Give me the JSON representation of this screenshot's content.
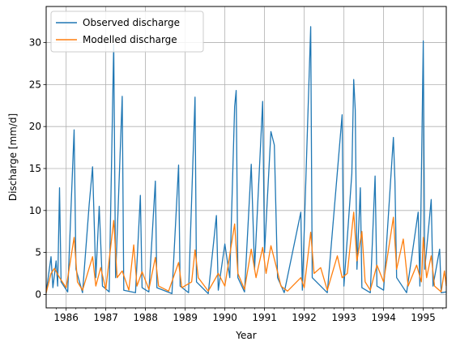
{
  "chart_data": {
    "type": "line",
    "title": "",
    "xlabel": "Year",
    "ylabel": "Discharge [mm/d]",
    "xlim": [
      "1985-07-01",
      "1995-08-01"
    ],
    "ylim": [
      -1.6,
      34.3
    ],
    "x_ticks": [
      "1986",
      "1987",
      "1988",
      "1989",
      "1990",
      "1991",
      "1992",
      "1993",
      "1994",
      "1995"
    ],
    "y_ticks": [
      0,
      5,
      10,
      15,
      20,
      25,
      30
    ],
    "grid": true,
    "legend": "top-left",
    "colors": {
      "observed": "#1f77b4",
      "modelled": "#ff7f0e",
      "grid": "#b0b0b0"
    },
    "series": [
      {
        "name": "Observed discharge",
        "color": "#1f77b4",
        "points": [
          [
            "1985-07-01",
            0.2
          ],
          [
            "1985-08-15",
            4.5
          ],
          [
            "1985-09-01",
            0.8
          ],
          [
            "1985-10-01",
            4.0
          ],
          [
            "1985-10-15",
            1.0
          ],
          [
            "1985-11-01",
            12.7
          ],
          [
            "1985-11-15",
            1.5
          ],
          [
            "1986-01-15",
            0.3
          ],
          [
            "1986-03-15",
            19.6
          ],
          [
            "1986-04-01",
            3.0
          ],
          [
            "1986-06-01",
            0.2
          ],
          [
            "1986-08-01",
            10.7
          ],
          [
            "1986-09-01",
            15.2
          ],
          [
            "1986-10-01",
            2.0
          ],
          [
            "1986-11-01",
            10.5
          ],
          [
            "1986-12-01",
            1.0
          ],
          [
            "1987-02-01",
            0.3
          ],
          [
            "1987-03-15",
            29.8
          ],
          [
            "1987-04-01",
            2.0
          ],
          [
            "1987-06-01",
            23.6
          ],
          [
            "1987-06-15",
            0.5
          ],
          [
            "1987-10-01",
            0.2
          ],
          [
            "1987-11-15",
            11.8
          ],
          [
            "1987-12-01",
            0.8
          ],
          [
            "1988-02-01",
            0.3
          ],
          [
            "1988-04-01",
            13.5
          ],
          [
            "1988-04-15",
            0.8
          ],
          [
            "1988-09-01",
            0.1
          ],
          [
            "1988-11-01",
            15.4
          ],
          [
            "1988-11-15",
            1.0
          ],
          [
            "1989-02-01",
            0.2
          ],
          [
            "1989-04-01",
            23.5
          ],
          [
            "1989-04-15",
            1.5
          ],
          [
            "1989-08-01",
            0.1
          ],
          [
            "1989-10-15",
            9.4
          ],
          [
            "1989-11-01",
            0.5
          ],
          [
            "1990-01-01",
            6.0
          ],
          [
            "1990-02-15",
            2.0
          ],
          [
            "1990-04-01",
            22.4
          ],
          [
            "1990-04-15",
            24.3
          ],
          [
            "1990-05-01",
            2.0
          ],
          [
            "1990-07-01",
            0.3
          ],
          [
            "1990-09-01",
            15.5
          ],
          [
            "1990-10-01",
            3.0
          ],
          [
            "1990-12-15",
            23.0
          ],
          [
            "1991-01-01",
            5.0
          ],
          [
            "1991-03-01",
            19.4
          ],
          [
            "1991-04-01",
            17.8
          ],
          [
            "1991-05-01",
            2.0
          ],
          [
            "1991-07-01",
            0.2
          ],
          [
            "1991-12-01",
            9.8
          ],
          [
            "1991-12-15",
            0.5
          ],
          [
            "1992-03-01",
            31.9
          ],
          [
            "1992-03-15",
            2.0
          ],
          [
            "1992-08-01",
            0.2
          ],
          [
            "1992-12-15",
            21.4
          ],
          [
            "1993-01-01",
            1.0
          ],
          [
            "1993-03-15",
            14.4
          ],
          [
            "1993-04-01",
            25.6
          ],
          [
            "1993-04-15",
            22.0
          ],
          [
            "1993-05-01",
            3.0
          ],
          [
            "1993-06-01",
            12.7
          ],
          [
            "1993-06-15",
            0.8
          ],
          [
            "1993-09-01",
            0.2
          ],
          [
            "1993-10-15",
            14.1
          ],
          [
            "1993-11-01",
            1.0
          ],
          [
            "1994-01-01",
            0.5
          ],
          [
            "1994-04-01",
            18.7
          ],
          [
            "1994-04-15",
            13.5
          ],
          [
            "1994-05-01",
            2.0
          ],
          [
            "1994-08-01",
            0.2
          ],
          [
            "1994-11-15",
            9.8
          ],
          [
            "1994-12-01",
            1.0
          ],
          [
            "1995-01-01",
            30.2
          ],
          [
            "1995-01-15",
            3.0
          ],
          [
            "1995-03-15",
            11.3
          ],
          [
            "1995-04-01",
            1.0
          ],
          [
            "1995-06-01",
            5.4
          ],
          [
            "1995-06-15",
            0.2
          ],
          [
            "1995-08-01",
            0.3
          ]
        ]
      },
      {
        "name": "Modelled discharge",
        "color": "#ff7f0e",
        "points": [
          [
            "1985-07-01",
            0.2
          ],
          [
            "1985-08-15",
            2.5
          ],
          [
            "1985-09-15",
            3.1
          ],
          [
            "1985-11-01",
            2.0
          ],
          [
            "1986-01-01",
            0.8
          ],
          [
            "1986-03-15",
            6.8
          ],
          [
            "1986-04-15",
            1.5
          ],
          [
            "1986-06-01",
            0.5
          ],
          [
            "1986-09-01",
            4.5
          ],
          [
            "1986-10-01",
            1.0
          ],
          [
            "1986-11-15",
            3.2
          ],
          [
            "1987-01-01",
            0.6
          ],
          [
            "1987-03-15",
            8.8
          ],
          [
            "1987-04-15",
            2.0
          ],
          [
            "1987-06-01",
            2.8
          ],
          [
            "1987-08-01",
            0.5
          ],
          [
            "1987-09-15",
            5.9
          ],
          [
            "1987-10-15",
            1.0
          ],
          [
            "1987-12-01",
            2.7
          ],
          [
            "1988-02-01",
            0.6
          ],
          [
            "1988-04-01",
            4.4
          ],
          [
            "1988-05-01",
            1.0
          ],
          [
            "1988-08-01",
            0.4
          ],
          [
            "1988-11-01",
            3.8
          ],
          [
            "1988-12-01",
            0.8
          ],
          [
            "1989-03-01",
            1.5
          ],
          [
            "1989-04-01",
            5.3
          ],
          [
            "1989-05-01",
            2.0
          ],
          [
            "1989-08-01",
            0.4
          ],
          [
            "1989-11-01",
            2.5
          ],
          [
            "1990-01-01",
            1.0
          ],
          [
            "1990-04-01",
            8.4
          ],
          [
            "1990-05-01",
            2.5
          ],
          [
            "1990-07-01",
            0.6
          ],
          [
            "1990-09-01",
            5.4
          ],
          [
            "1990-10-15",
            2.0
          ],
          [
            "1990-12-15",
            5.6
          ],
          [
            "1991-01-15",
            2.5
          ],
          [
            "1991-03-01",
            5.8
          ],
          [
            "1991-04-15",
            3.5
          ],
          [
            "1991-06-01",
            1.0
          ],
          [
            "1991-08-01",
            0.4
          ],
          [
            "1991-12-01",
            2.0
          ],
          [
            "1992-01-01",
            0.8
          ],
          [
            "1992-03-01",
            7.4
          ],
          [
            "1992-04-01",
            2.5
          ],
          [
            "1992-06-01",
            3.2
          ],
          [
            "1992-08-01",
            0.5
          ],
          [
            "1992-11-01",
            4.6
          ],
          [
            "1992-12-15",
            2.0
          ],
          [
            "1993-02-01",
            2.5
          ],
          [
            "1993-04-01",
            9.8
          ],
          [
            "1993-05-01",
            4.0
          ],
          [
            "1993-06-15",
            7.5
          ],
          [
            "1993-07-15",
            1.5
          ],
          [
            "1993-09-01",
            0.5
          ],
          [
            "1993-11-01",
            3.5
          ],
          [
            "1994-01-01",
            1.5
          ],
          [
            "1994-04-01",
            9.2
          ],
          [
            "1994-05-01",
            3.0
          ],
          [
            "1994-07-01",
            6.6
          ],
          [
            "1994-08-15",
            1.0
          ],
          [
            "1994-11-01",
            3.5
          ],
          [
            "1994-12-15",
            1.5
          ],
          [
            "1995-01-01",
            6.8
          ],
          [
            "1995-02-01",
            2.0
          ],
          [
            "1995-03-15",
            4.6
          ],
          [
            "1995-04-15",
            1.0
          ],
          [
            "1995-06-15",
            0.3
          ],
          [
            "1995-07-15",
            2.8
          ],
          [
            "1995-08-01",
            1.0
          ]
        ]
      }
    ]
  }
}
